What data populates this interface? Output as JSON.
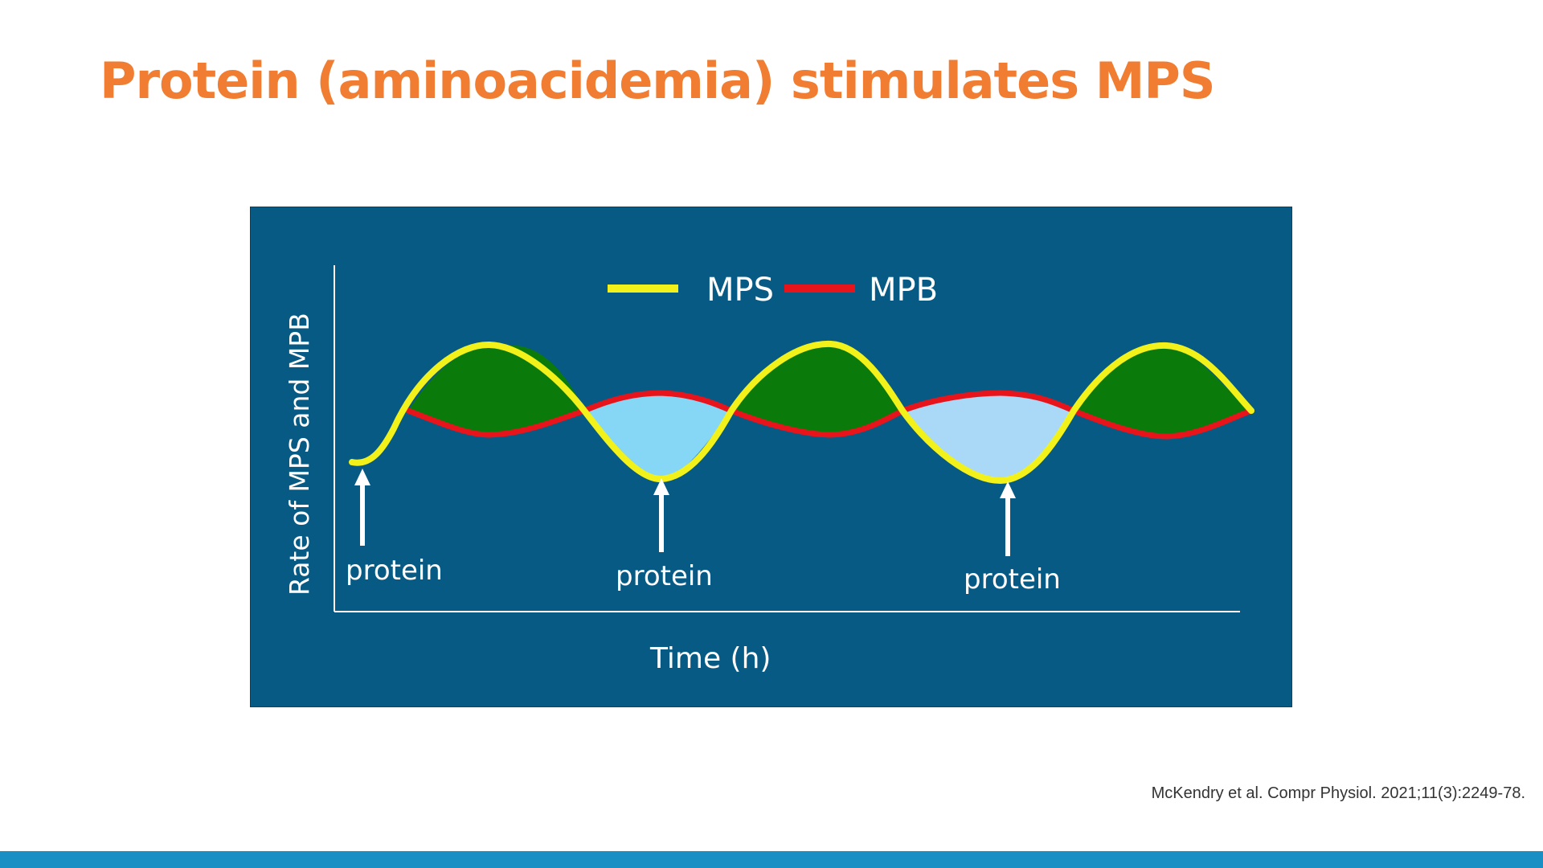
{
  "slide": {
    "title": "Protein (aminoacidemia) stimulates MPS",
    "citation": "McKendry et al. Compr Physiol. 2021;11(3):2249-78."
  },
  "figure": {
    "y_axis_label": "Rate of MPS and MPB",
    "x_axis_label": "Time (h)",
    "legend": [
      {
        "label": "MPS",
        "color": "#f2f21a"
      },
      {
        "label": "MPB",
        "color": "#e8141c"
      }
    ],
    "event_labels": [
      "protein",
      "protein",
      "protein"
    ],
    "colors": {
      "panel_background": "#065a84",
      "net_gain_fill": "#0a7a0a",
      "net_loss_fill": "#8fd8f5",
      "axis": "#ffffff"
    }
  }
}
